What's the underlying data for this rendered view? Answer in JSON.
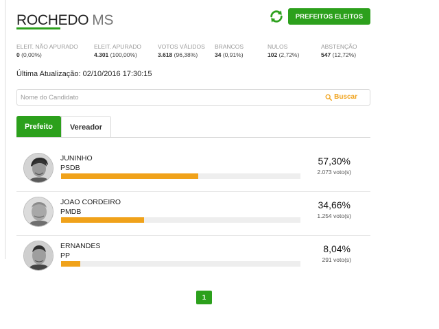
{
  "header": {
    "city": "ROCHEDO",
    "state": "MS",
    "refresh_icon": "refresh-icon",
    "prefeitos_button": "PREFEITOS ELEITOS",
    "accent_color": "#2ca01c",
    "bar_color": "#f0a21a"
  },
  "stats": [
    {
      "label": "ELEIT. NÃO APURADO",
      "value": "0",
      "pct": "(0,00%)"
    },
    {
      "label": "ELEIT. APURADO",
      "value": "4.301",
      "pct": "(100,00%)"
    },
    {
      "label": "VOTOS VÁLIDOS",
      "value": "3.618",
      "pct": "(96,38%)"
    },
    {
      "label": "BRANCOS",
      "value": "34",
      "pct": "(0,91%)"
    },
    {
      "label": "NULOS",
      "value": "102",
      "pct": "(2,72%)"
    },
    {
      "label": "ABSTENÇÃO",
      "value": "547",
      "pct": "(12,72%)"
    }
  ],
  "update": {
    "label": "Última Atualização:",
    "value": "02/10/2016 17:30:15"
  },
  "search": {
    "placeholder": "Nome do Candidato",
    "button": "Buscar",
    "icon": "search-icon"
  },
  "tabs": [
    {
      "label": "Prefeito",
      "active": true
    },
    {
      "label": "Vereador",
      "active": false
    }
  ],
  "candidates": [
    {
      "name": "JUNINHO",
      "party": "PSDB",
      "percent_text": "57,30%",
      "percent": 57.3,
      "votes": "2.073 voto(s)"
    },
    {
      "name": "JOAO CORDEIRO",
      "party": "PMDB",
      "percent_text": "34,66%",
      "percent": 34.66,
      "votes": "1.254 voto(s)"
    },
    {
      "name": "ERNANDES",
      "party": "PP",
      "percent_text": "8,04%",
      "percent": 8.04,
      "votes": "291 voto(s)"
    }
  ],
  "pagination": {
    "current": "1"
  }
}
